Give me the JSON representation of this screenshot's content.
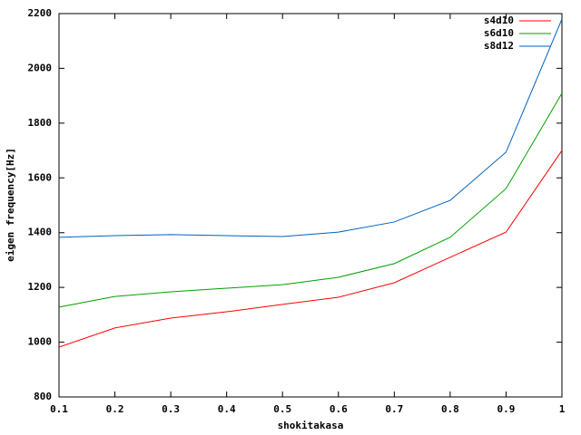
{
  "chart_data": {
    "type": "line",
    "x_label": "shokitakasa",
    "y_label": "eigen frequency[Hz]",
    "x": [
      0.1,
      0.2,
      0.3,
      0.4,
      0.5,
      0.6,
      0.7,
      0.8,
      0.9,
      1
    ],
    "series": [
      {
        "name": "s4d10",
        "color": "#ff0000",
        "values": [
          982,
          1052,
          1088,
          1111,
          1138,
          1164,
          1217,
          1310,
          1402,
          1700
        ]
      },
      {
        "name": "s6d10",
        "color": "#00a000",
        "values": [
          1128,
          1167,
          1184,
          1197,
          1210,
          1237,
          1287,
          1383,
          1561,
          1909
        ]
      },
      {
        "name": "s8d12",
        "color": "#0060c0",
        "values": [
          1383,
          1389,
          1393,
          1389,
          1386,
          1402,
          1439,
          1518,
          1694,
          2180
        ]
      }
    ],
    "xlim": [
      0.1,
      1
    ],
    "xticks": [
      0.1,
      0.2,
      0.3,
      0.4,
      0.5,
      0.6,
      0.7,
      0.8,
      0.9,
      1
    ],
    "ylim": [
      800,
      2200
    ],
    "yticks": [
      800,
      1000,
      1200,
      1400,
      1600,
      1800,
      2000,
      2200
    ],
    "legend": "top-right"
  }
}
